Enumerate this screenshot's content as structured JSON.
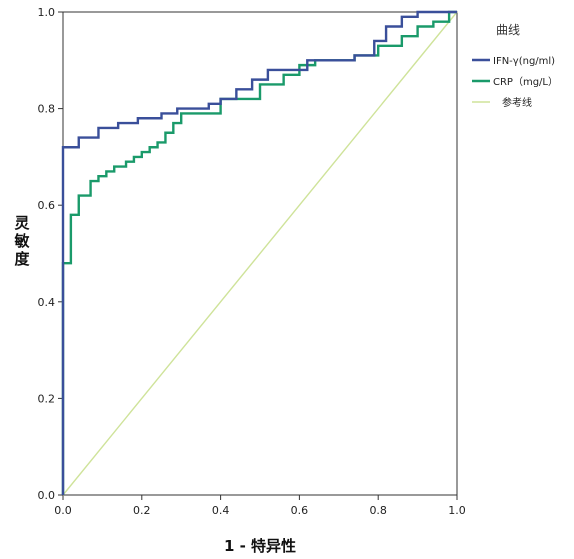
{
  "chart_data": {
    "type": "line",
    "title": "",
    "xlabel": "1 - 特异性",
    "ylabel": "灵敏度",
    "xlim": [
      0,
      1
    ],
    "ylim": [
      0,
      1
    ],
    "x_ticks": [
      "0.0",
      "0.2",
      "0.4",
      "0.6",
      "0.8",
      "1.0"
    ],
    "y_ticks": [
      "0.0",
      "0.2",
      "0.4",
      "0.6",
      "0.8",
      "1.0"
    ],
    "grid": false,
    "legend": {
      "title": "曲线",
      "placement": "right-top",
      "entries": [
        "IFN-γ(ng/ml)",
        "CRP（mg/L）",
        "参考线"
      ]
    },
    "series": [
      {
        "name": "IFN-γ(ng/ml)",
        "color": "#3a4f9a",
        "points": [
          [
            0,
            0
          ],
          [
            0,
            0.72
          ],
          [
            0.04,
            0.72
          ],
          [
            0.04,
            0.74
          ],
          [
            0.09,
            0.74
          ],
          [
            0.09,
            0.76
          ],
          [
            0.14,
            0.76
          ],
          [
            0.14,
            0.77
          ],
          [
            0.19,
            0.77
          ],
          [
            0.19,
            0.78
          ],
          [
            0.25,
            0.78
          ],
          [
            0.25,
            0.79
          ],
          [
            0.29,
            0.79
          ],
          [
            0.29,
            0.8
          ],
          [
            0.37,
            0.8
          ],
          [
            0.37,
            0.81
          ],
          [
            0.4,
            0.81
          ],
          [
            0.4,
            0.82
          ],
          [
            0.44,
            0.82
          ],
          [
            0.44,
            0.84
          ],
          [
            0.48,
            0.84
          ],
          [
            0.48,
            0.86
          ],
          [
            0.52,
            0.86
          ],
          [
            0.52,
            0.88
          ],
          [
            0.62,
            0.88
          ],
          [
            0.62,
            0.9
          ],
          [
            0.74,
            0.9
          ],
          [
            0.74,
            0.91
          ],
          [
            0.79,
            0.91
          ],
          [
            0.79,
            0.94
          ],
          [
            0.82,
            0.94
          ],
          [
            0.82,
            0.97
          ],
          [
            0.86,
            0.97
          ],
          [
            0.86,
            0.99
          ],
          [
            0.9,
            0.99
          ],
          [
            0.9,
            1.0
          ],
          [
            1.0,
            1.0
          ]
        ]
      },
      {
        "name": "CRP（mg/L）",
        "color": "#1a9a6a",
        "points": [
          [
            0,
            0
          ],
          [
            0,
            0.48
          ],
          [
            0.02,
            0.48
          ],
          [
            0.02,
            0.58
          ],
          [
            0.04,
            0.58
          ],
          [
            0.04,
            0.62
          ],
          [
            0.07,
            0.62
          ],
          [
            0.07,
            0.65
          ],
          [
            0.09,
            0.65
          ],
          [
            0.09,
            0.66
          ],
          [
            0.11,
            0.66
          ],
          [
            0.11,
            0.67
          ],
          [
            0.13,
            0.67
          ],
          [
            0.13,
            0.68
          ],
          [
            0.16,
            0.68
          ],
          [
            0.16,
            0.69
          ],
          [
            0.18,
            0.69
          ],
          [
            0.18,
            0.7
          ],
          [
            0.2,
            0.7
          ],
          [
            0.2,
            0.71
          ],
          [
            0.22,
            0.71
          ],
          [
            0.22,
            0.72
          ],
          [
            0.24,
            0.72
          ],
          [
            0.24,
            0.73
          ],
          [
            0.26,
            0.73
          ],
          [
            0.26,
            0.75
          ],
          [
            0.28,
            0.75
          ],
          [
            0.28,
            0.77
          ],
          [
            0.3,
            0.77
          ],
          [
            0.3,
            0.79
          ],
          [
            0.4,
            0.79
          ],
          [
            0.4,
            0.82
          ],
          [
            0.5,
            0.82
          ],
          [
            0.5,
            0.85
          ],
          [
            0.56,
            0.85
          ],
          [
            0.56,
            0.87
          ],
          [
            0.6,
            0.87
          ],
          [
            0.6,
            0.89
          ],
          [
            0.64,
            0.89
          ],
          [
            0.64,
            0.9
          ],
          [
            0.74,
            0.9
          ],
          [
            0.74,
            0.91
          ],
          [
            0.8,
            0.91
          ],
          [
            0.8,
            0.93
          ],
          [
            0.86,
            0.93
          ],
          [
            0.86,
            0.95
          ],
          [
            0.9,
            0.95
          ],
          [
            0.9,
            0.97
          ],
          [
            0.94,
            0.97
          ],
          [
            0.94,
            0.98
          ],
          [
            0.98,
            0.98
          ],
          [
            0.98,
            1.0
          ],
          [
            1.0,
            1.0
          ]
        ]
      },
      {
        "name": "参考线",
        "color": "#cfe39a",
        "points": [
          [
            0,
            0
          ],
          [
            1,
            1
          ]
        ]
      }
    ]
  }
}
